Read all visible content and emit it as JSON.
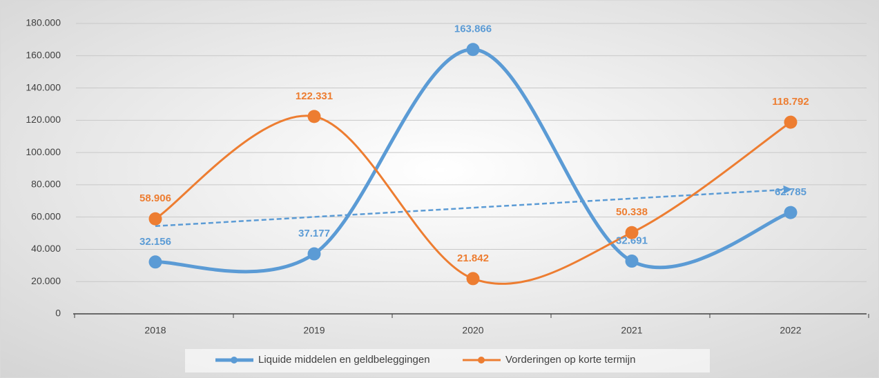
{
  "chart_data": {
    "type": "line",
    "categories": [
      "2018",
      "2019",
      "2020",
      "2021",
      "2022"
    ],
    "series": [
      {
        "name": "Liquide middelen en geldbeleggingen",
        "color": "#5b9bd5",
        "trendline": true,
        "values": [
          32156,
          37177,
          163866,
          32691,
          62785
        ],
        "value_labels": [
          "32.156",
          "37.177",
          "163.866",
          "32.691",
          "62.785"
        ]
      },
      {
        "name": "Vorderingen op korte termijn",
        "color": "#ed7d31",
        "values": [
          58906,
          122331,
          21842,
          50338,
          118792
        ],
        "value_labels": [
          "58.906",
          "122.331",
          "21.842",
          "50.338",
          "118.792"
        ]
      }
    ],
    "ylim": [
      0,
      180000
    ],
    "yticks": [
      0,
      {
        "value": 20000,
        "label": "20.000"
      },
      {
        "value": 40000,
        "label": "40.000"
      },
      {
        "value": 60000,
        "label": "60.000"
      },
      {
        "value": 80000,
        "label": "80.000"
      },
      {
        "value": 100000,
        "label": "100.000"
      },
      {
        "value": 120000,
        "label": "120.000"
      },
      {
        "value": 140000,
        "label": "140.000"
      },
      {
        "value": 160000,
        "label": "160.000"
      },
      {
        "value": 180000,
        "label": "180.000"
      }
    ],
    "grid": true,
    "legend": "bottom"
  }
}
